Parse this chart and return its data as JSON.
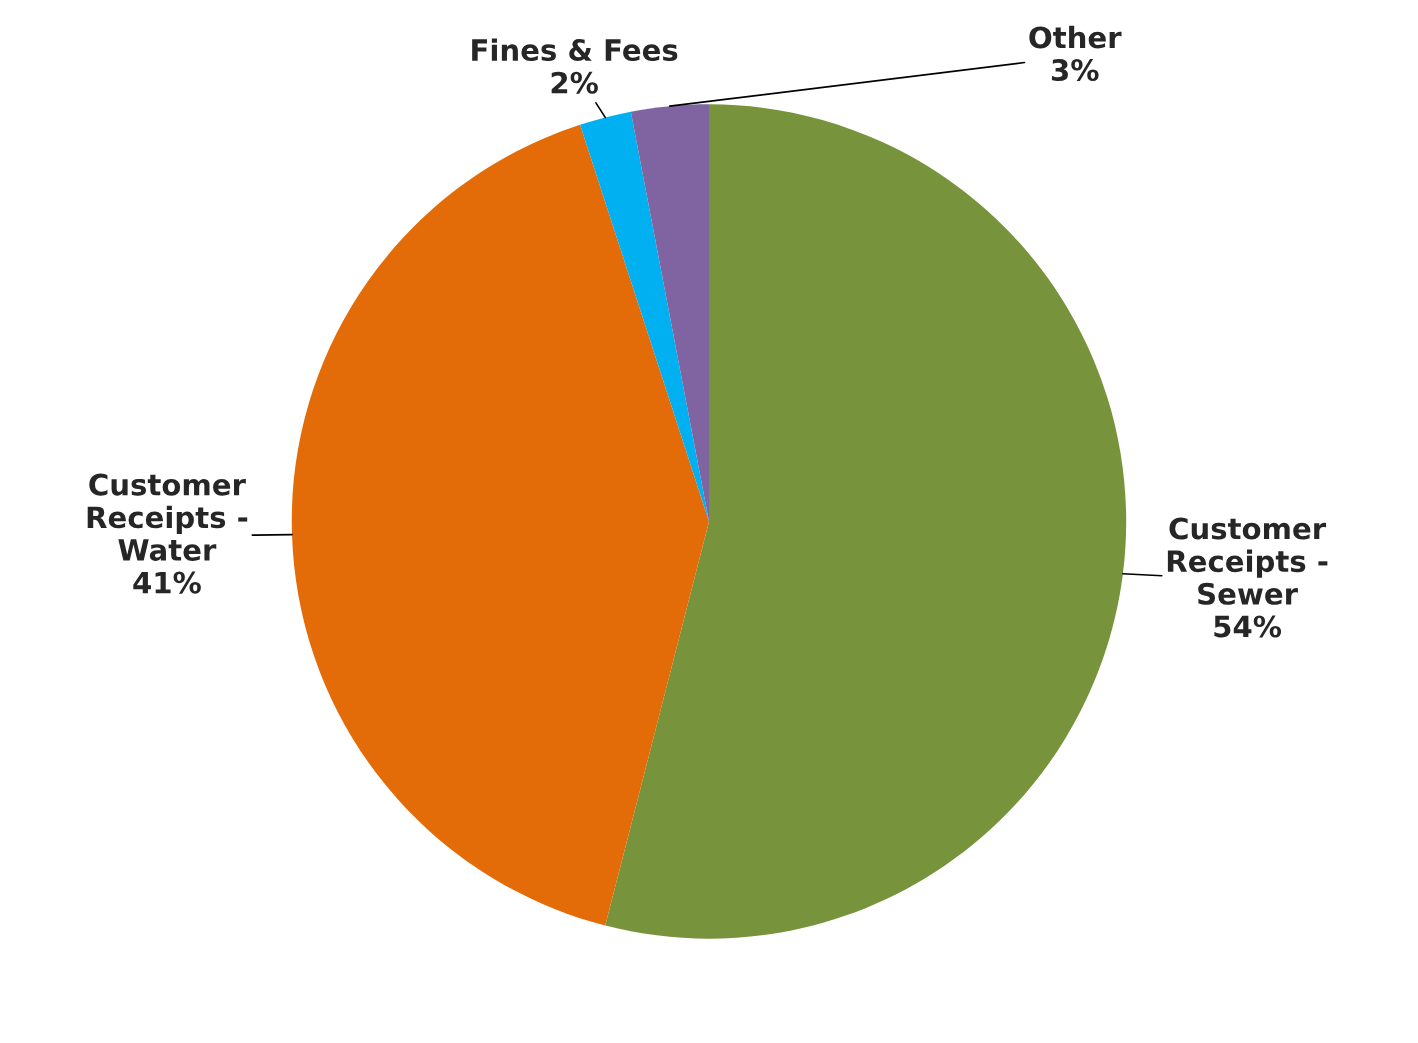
{
  "chart_data": {
    "type": "pie",
    "categories": [
      "Customer\nReceipts -\nSewer",
      "Customer\nReceipts -\nWater",
      "Fines & Fees",
      "Other"
    ],
    "values": [
      54,
      41,
      2,
      3
    ],
    "colors": [
      "#77933c",
      "#e36c09",
      "#00b0f0",
      "#8064a2"
    ],
    "value_labels": [
      "54%",
      "41%",
      "2%",
      "3%"
    ]
  }
}
